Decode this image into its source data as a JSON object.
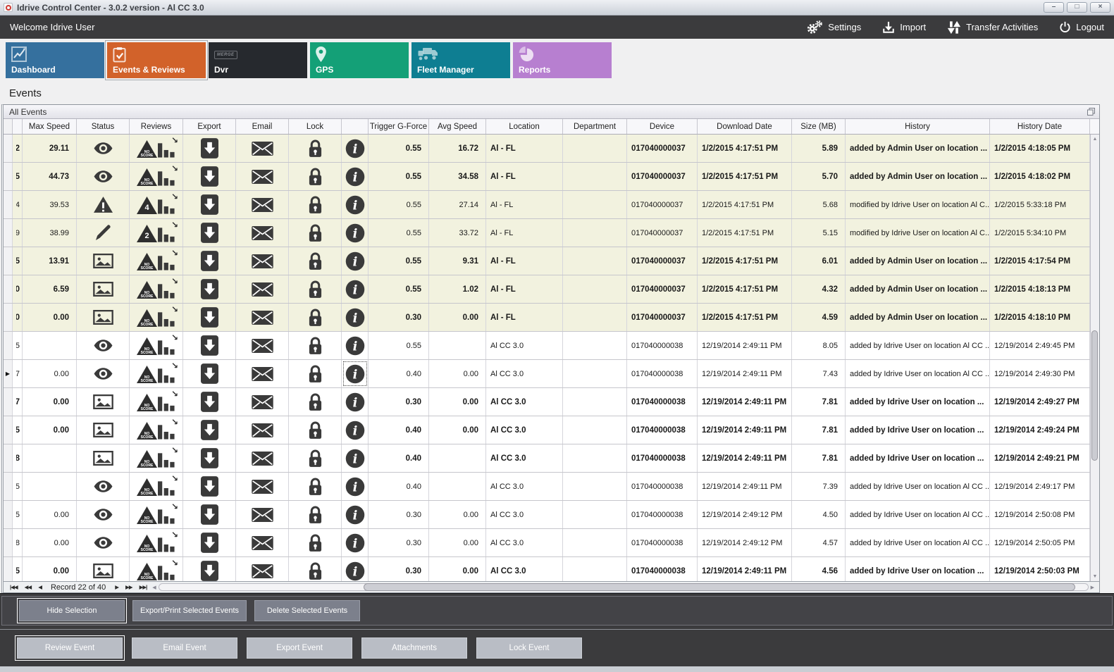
{
  "window": {
    "title": "Idrive Control Center - 3.0.2 version - Al CC 3.0",
    "controls": [
      {
        "name": "minimize-button",
        "glyph": "–"
      },
      {
        "name": "maximize-button",
        "glyph": "□"
      },
      {
        "name": "close-button",
        "glyph": "×"
      }
    ]
  },
  "menubar": {
    "welcome": "Welcome Idrive User",
    "actions": [
      {
        "name": "settings-button",
        "label": "Settings",
        "icon": "gears-icon"
      },
      {
        "name": "import-button",
        "label": "Import",
        "icon": "import-icon"
      },
      {
        "name": "transfer-activities-button",
        "label": "Transfer Activities",
        "icon": "transfer-arrows-icon"
      },
      {
        "name": "logout-button",
        "label": "Logout",
        "icon": "power-icon"
      }
    ]
  },
  "tabs": [
    {
      "name": "dashboard",
      "label": "Dashboard",
      "color": "#35709e",
      "icon": "line-chart-icon",
      "selected": false
    },
    {
      "name": "events-reviews",
      "label": "Events & Reviews",
      "color": "#d2622a",
      "icon": "clipboard-check-icon",
      "selected": true
    },
    {
      "name": "dvr",
      "label": "Dvr",
      "color": "#26292e",
      "icon": "merge-sign-icon",
      "icon_text": "MERGE",
      "selected": false
    },
    {
      "name": "gps",
      "label": "GPS",
      "color": "#14a077",
      "icon": "map-pin-icon",
      "selected": false
    },
    {
      "name": "fleet-manager",
      "label": "Fleet Manager",
      "color": "#0e7e92",
      "icon": "vehicles-icon",
      "selected": false
    },
    {
      "name": "reports",
      "label": "Reports",
      "color": "#b77fd0",
      "icon": "pie-chart-icon",
      "selected": false
    }
  ],
  "section_title": "Events",
  "grid": {
    "caption": "All Events",
    "column_labels": [
      "Max Speed",
      "Status",
      "Reviews",
      "Export",
      "Email",
      "Lock",
      "",
      "Trigger G-Force",
      "Avg Speed",
      "Location",
      "Department",
      "Device",
      "Download Date",
      "Size (MB)",
      "History",
      "History Date"
    ],
    "rows": [
      {
        "id_digit": "2",
        "max_speed": "29.11",
        "status_icon": "eye-icon",
        "review_label": "NO SCORE",
        "trigger_g_force": "0.55",
        "avg_speed": "16.72",
        "location": "Al - FL",
        "department": "",
        "device": "017040000037",
        "download_date": "1/2/2015 4:17:51 PM",
        "size_mb": "5.89",
        "history": "added by Admin User on location ...",
        "history_date": "1/2/2015 4:18:05 PM",
        "bold": true,
        "highlighted": true,
        "selected": false
      },
      {
        "id_digit": "5",
        "max_speed": "44.73",
        "status_icon": "eye-icon",
        "review_label": "NO SCORE",
        "trigger_g_force": "0.55",
        "avg_speed": "34.58",
        "location": "Al - FL",
        "department": "",
        "device": "017040000037",
        "download_date": "1/2/2015 4:17:51 PM",
        "size_mb": "5.70",
        "history": "added by Admin User on location ...",
        "history_date": "1/2/2015 4:18:02 PM",
        "bold": true,
        "highlighted": true,
        "selected": false
      },
      {
        "id_digit": "4",
        "max_speed": "39.53",
        "status_icon": "warning-icon",
        "review_label": "4",
        "trigger_g_force": "0.55",
        "avg_speed": "27.14",
        "location": "Al - FL",
        "department": "",
        "device": "017040000037",
        "download_date": "1/2/2015 4:17:51 PM",
        "size_mb": "5.68",
        "history": "modified by Idrive User on location Al C...",
        "history_date": "1/2/2015 5:33:18 PM",
        "bold": false,
        "highlighted": true,
        "selected": false
      },
      {
        "id_digit": "9",
        "max_speed": "38.99",
        "status_icon": "pencil-icon",
        "review_label": "2",
        "trigger_g_force": "0.55",
        "avg_speed": "33.72",
        "location": "Al - FL",
        "department": "",
        "device": "017040000037",
        "download_date": "1/2/2015 4:17:51 PM",
        "size_mb": "5.15",
        "history": "modified by Idrive User on location Al C...",
        "history_date": "1/2/2015 5:34:10 PM",
        "bold": false,
        "highlighted": true,
        "selected": false
      },
      {
        "id_digit": "5",
        "max_speed": "13.91",
        "status_icon": "photo-icon",
        "review_label": "NO SCORE",
        "trigger_g_force": "0.55",
        "avg_speed": "9.31",
        "location": "Al - FL",
        "department": "",
        "device": "017040000037",
        "download_date": "1/2/2015 4:17:51 PM",
        "size_mb": "6.01",
        "history": "added by Admin User on location ...",
        "history_date": "1/2/2015 4:17:54 PM",
        "bold": true,
        "highlighted": true,
        "selected": false
      },
      {
        "id_digit": "0",
        "max_speed": "6.59",
        "status_icon": "photo-icon",
        "review_label": "NO SCORE",
        "trigger_g_force": "0.55",
        "avg_speed": "1.02",
        "location": "Al - FL",
        "department": "",
        "device": "017040000037",
        "download_date": "1/2/2015 4:17:51 PM",
        "size_mb": "4.32",
        "history": "added by Admin User on location ...",
        "history_date": "1/2/2015 4:18:13 PM",
        "bold": true,
        "highlighted": true,
        "selected": false
      },
      {
        "id_digit": "0",
        "max_speed": "0.00",
        "status_icon": "photo-icon",
        "review_label": "NO SCORE",
        "trigger_g_force": "0.30",
        "avg_speed": "0.00",
        "location": "Al - FL",
        "department": "",
        "device": "017040000037",
        "download_date": "1/2/2015 4:17:51 PM",
        "size_mb": "4.59",
        "history": "added by Admin User on location ...",
        "history_date": "1/2/2015 4:18:10 PM",
        "bold": true,
        "highlighted": true,
        "selected": false
      },
      {
        "id_digit": "5",
        "max_speed": "",
        "status_icon": "eye-icon",
        "review_label": "NO SCORE",
        "trigger_g_force": "0.55",
        "avg_speed": "",
        "location": "Al CC 3.0",
        "department": "",
        "device": "017040000038",
        "download_date": "12/19/2014 2:49:11 PM",
        "size_mb": "8.05",
        "history": "added by Idrive User on location Al CC ...",
        "history_date": "12/19/2014 2:49:45 PM",
        "bold": false,
        "highlighted": false,
        "selected": false
      },
      {
        "id_digit": "7",
        "max_speed": "0.00",
        "status_icon": "eye-icon",
        "review_label": "NO SCORE",
        "trigger_g_force": "0.40",
        "avg_speed": "0.00",
        "location": "Al CC 3.0",
        "department": "",
        "device": "017040000038",
        "download_date": "12/19/2014 2:49:11 PM",
        "size_mb": "7.43",
        "history": "added by Idrive User on location Al CC ...",
        "history_date": "12/19/2014 2:49:30 PM",
        "bold": false,
        "highlighted": false,
        "selected": true
      },
      {
        "id_digit": "7",
        "max_speed": "0.00",
        "status_icon": "photo-icon",
        "review_label": "NO SCORE",
        "trigger_g_force": "0.30",
        "avg_speed": "0.00",
        "location": "Al CC 3.0",
        "department": "",
        "device": "017040000038",
        "download_date": "12/19/2014 2:49:11 PM",
        "size_mb": "7.81",
        "history": "added by Idrive User on location ...",
        "history_date": "12/19/2014 2:49:27 PM",
        "bold": true,
        "highlighted": false,
        "selected": false
      },
      {
        "id_digit": "5",
        "max_speed": "0.00",
        "status_icon": "photo-icon",
        "review_label": "NO SCORE",
        "trigger_g_force": "0.40",
        "avg_speed": "0.00",
        "location": "Al CC 3.0",
        "department": "",
        "device": "017040000038",
        "download_date": "12/19/2014 2:49:11 PM",
        "size_mb": "7.81",
        "history": "added by Idrive User on location ...",
        "history_date": "12/19/2014 2:49:24 PM",
        "bold": true,
        "highlighted": false,
        "selected": false
      },
      {
        "id_digit": "8",
        "max_speed": "",
        "status_icon": "photo-icon",
        "review_label": "NO SCORE",
        "trigger_g_force": "0.40",
        "avg_speed": "",
        "location": "Al CC 3.0",
        "department": "",
        "device": "017040000038",
        "download_date": "12/19/2014 2:49:11 PM",
        "size_mb": "7.81",
        "history": "added by Idrive User on location ...",
        "history_date": "12/19/2014 2:49:21 PM",
        "bold": true,
        "highlighted": false,
        "selected": false
      },
      {
        "id_digit": "5",
        "max_speed": "",
        "status_icon": "eye-icon",
        "review_label": "NO SCORE",
        "trigger_g_force": "0.40",
        "avg_speed": "",
        "location": "Al CC 3.0",
        "department": "",
        "device": "017040000038",
        "download_date": "12/19/2014 2:49:11 PM",
        "size_mb": "7.39",
        "history": "added by Idrive User on location Al CC ...",
        "history_date": "12/19/2014 2:49:17 PM",
        "bold": false,
        "highlighted": false,
        "selected": false
      },
      {
        "id_digit": "5",
        "max_speed": "0.00",
        "status_icon": "eye-icon",
        "review_label": "NO SCORE",
        "trigger_g_force": "0.30",
        "avg_speed": "0.00",
        "location": "Al CC 3.0",
        "department": "",
        "device": "017040000038",
        "download_date": "12/19/2014 2:49:12 PM",
        "size_mb": "4.50",
        "history": "added by Idrive User on location Al CC ...",
        "history_date": "12/19/2014 2:50:08 PM",
        "bold": false,
        "highlighted": false,
        "selected": false
      },
      {
        "id_digit": "8",
        "max_speed": "0.00",
        "status_icon": "eye-icon",
        "review_label": "NO SCORE",
        "trigger_g_force": "0.30",
        "avg_speed": "0.00",
        "location": "Al CC 3.0",
        "department": "",
        "device": "017040000038",
        "download_date": "12/19/2014 2:49:12 PM",
        "size_mb": "4.57",
        "history": "added by Idrive User on location Al CC ...",
        "history_date": "12/19/2014 2:50:05 PM",
        "bold": false,
        "highlighted": false,
        "selected": false
      },
      {
        "id_digit": "5",
        "max_speed": "0.00",
        "status_icon": "photo-icon",
        "review_label": "NO SCORE",
        "trigger_g_force": "0.30",
        "avg_speed": "0.00",
        "location": "Al CC 3.0",
        "department": "",
        "device": "017040000038",
        "download_date": "12/19/2014 2:49:11 PM",
        "size_mb": "4.56",
        "history": "added by Idrive User on location ...",
        "history_date": "12/19/2014 2:50:03 PM",
        "bold": true,
        "highlighted": false,
        "selected": false
      }
    ]
  },
  "record_navigator": {
    "text": "Record 22 of 40",
    "buttons_left": [
      {
        "name": "first-record-button",
        "glyph": "|◀◀"
      },
      {
        "name": "prev-page-button",
        "glyph": "◀◀"
      },
      {
        "name": "prev-record-button",
        "glyph": "◀"
      }
    ],
    "buttons_right": [
      {
        "name": "next-record-button",
        "glyph": "▶"
      },
      {
        "name": "next-page-button",
        "glyph": "▶▶"
      },
      {
        "name": "last-record-button",
        "glyph": "▶▶|"
      }
    ]
  },
  "scrollbars": {
    "up_glyph": "▲",
    "down_glyph": "▼",
    "left_glyph": "◀",
    "right_glyph": "▶"
  },
  "footer": {
    "selection_buttons": [
      {
        "name": "hide-selection-button",
        "label": "Hide Selection",
        "focused": true
      },
      {
        "name": "export-print-selected-events-button",
        "label": "Export/Print Selected Events",
        "focused": false
      },
      {
        "name": "delete-selected-events-button",
        "label": "Delete Selected  Events",
        "focused": false
      }
    ],
    "event_buttons": [
      {
        "name": "review-event-button",
        "label": "Review Event",
        "focused": true
      },
      {
        "name": "email-event-button",
        "label": "Email Event",
        "focused": false
      },
      {
        "name": "export-event-button",
        "label": "Export Event",
        "focused": false
      },
      {
        "name": "attachments-button",
        "label": "Attachments",
        "focused": false
      },
      {
        "name": "lock-event-button",
        "label": "Lock Event",
        "focused": false
      }
    ]
  }
}
